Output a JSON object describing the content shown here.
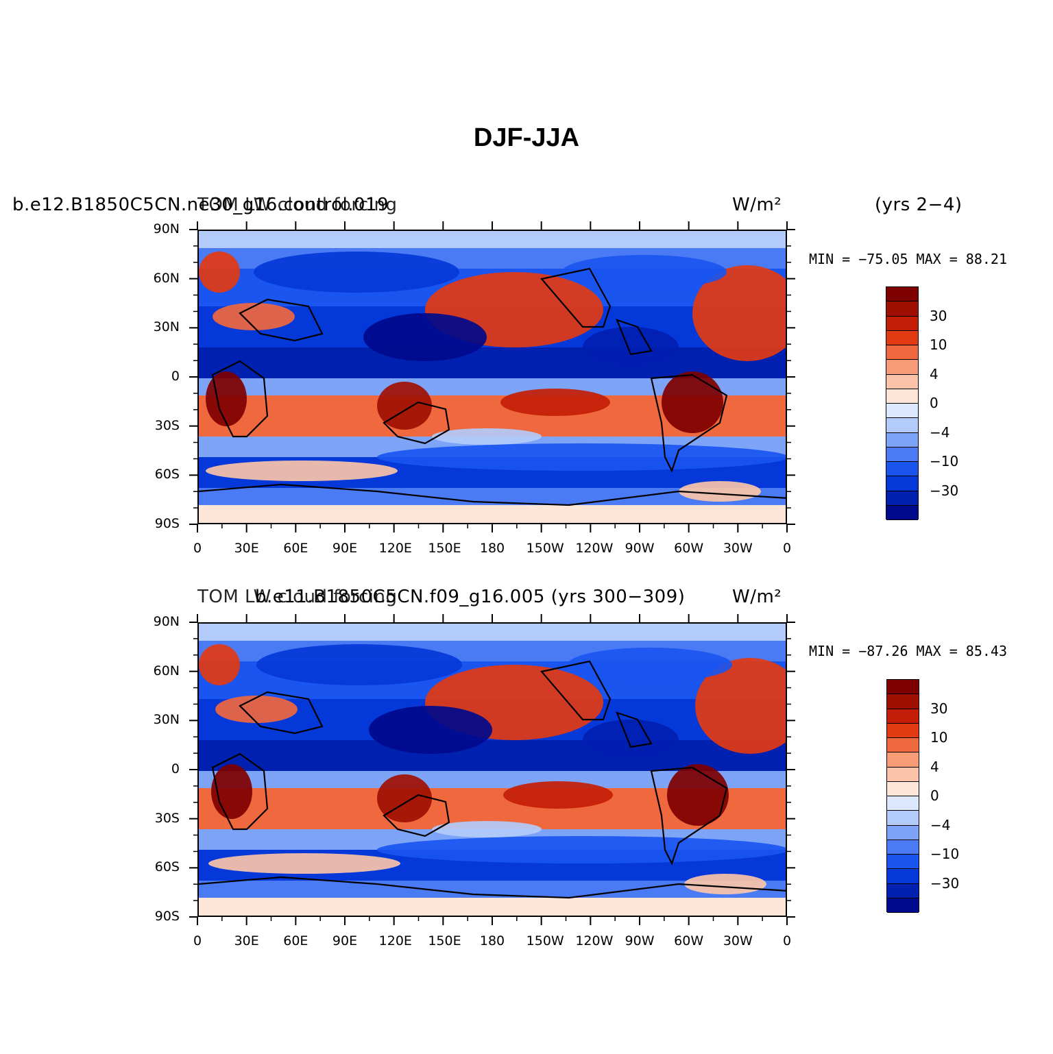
{
  "title": "DJF-JJA",
  "palette": [
    "#000a8c",
    "#0020b0",
    "#0438d8",
    "#1a55f0",
    "#4a7bf5",
    "#7ea4f7",
    "#b3cbfa",
    "#dbe8fd",
    "#fde6d8",
    "#fbc4a8",
    "#f89c78",
    "#f0683e",
    "#e23a12",
    "#c41e06",
    "#a01002",
    "#7e0000"
  ],
  "colorbar_labels": [
    "30",
    "10",
    "4",
    "0",
    "−4",
    "−10",
    "−30"
  ],
  "lat_labels": [
    "90N",
    "60N",
    "30N",
    "0",
    "30S",
    "60S",
    "90S"
  ],
  "lon_labels": [
    "0",
    "30E",
    "60E",
    "90E",
    "120E",
    "150E",
    "180",
    "150W",
    "120W",
    "90W",
    "60W",
    "30W",
    "0"
  ],
  "panels": [
    {
      "case_label": "b.e12.B1850C5CN.ne30_g16.control.019",
      "variable_label": "TOM LW cloud forcing",
      "units_label": "W/m²",
      "years_label": "(yrs 2−4)",
      "minmax": "MIN = −75.05 MAX =  88.21"
    },
    {
      "case_label": "b.e11.B1850C5CN.f09_g16.005 (yrs 300−309)",
      "variable_label": "TOM LW cloud forcing",
      "units_label": "W/m²",
      "years_label": "",
      "minmax": "MIN = −87.26 MAX =  85.43"
    }
  ]
}
